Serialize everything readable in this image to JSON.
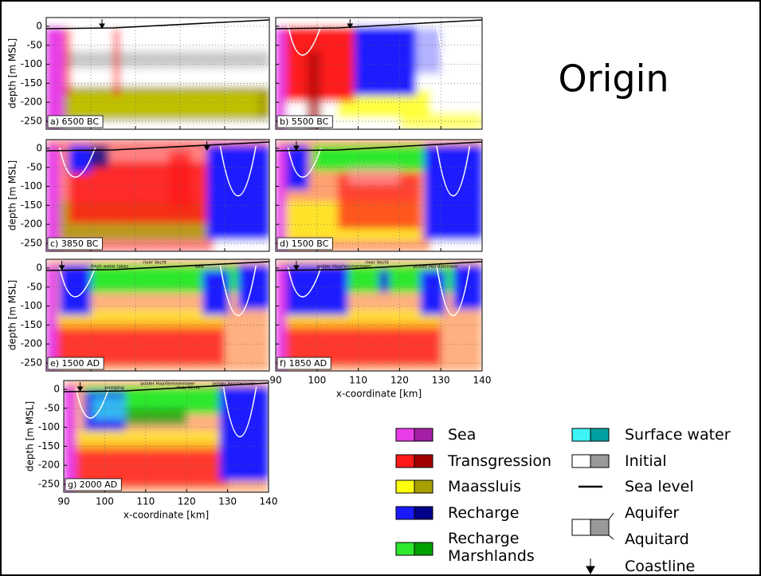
{
  "title": "Origin",
  "y_axis_label": "depth [m MSL]",
  "x_axis_label": "x-coordinate [km]",
  "yticks": [
    0,
    -50,
    -100,
    -150,
    -200,
    -250
  ],
  "xticks": [
    90,
    100,
    110,
    120,
    130,
    140
  ],
  "panels": [
    {
      "label": "a) 6500 BC"
    },
    {
      "label": "b) 5500 BC"
    },
    {
      "label": "c) 3850 BC"
    },
    {
      "label": "d) 1500 BC"
    },
    {
      "label": "e) 1500 AD",
      "annotations": [
        "fresh water lakes",
        "river Vecht",
        "lake"
      ]
    },
    {
      "label": "f) 1850 AD",
      "annotations": [
        "polder Haarlemmermeer",
        "river Vecht",
        "polder Hondsermeer"
      ]
    },
    {
      "label": "g) 2000 AD",
      "annotations": [
        "pumping",
        "polder Haarlemmermeer",
        "river Vecht",
        "polder Horstermeer"
      ]
    }
  ],
  "legend": {
    "items": [
      "Sea",
      "Transgression",
      "Maassluis",
      "Recharge",
      "Recharge Marshlands",
      "Surface water",
      "Initial",
      "Sea level",
      "Aquifer",
      "Aquitard",
      "Coastline"
    ]
  }
}
